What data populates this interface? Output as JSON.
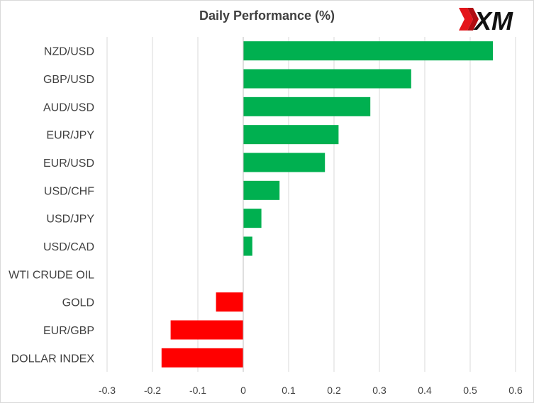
{
  "title": "Daily Performance (%)",
  "logo_text": "XM",
  "colors": {
    "positive": "#00b050",
    "negative": "#ff0000",
    "grid": "#d9d9d9",
    "text": "#404040"
  },
  "chart_data": {
    "type": "bar",
    "orientation": "horizontal",
    "title": "Daily Performance (%)",
    "categories": [
      "NZD/USD",
      "GBP/USD",
      "AUD/USD",
      "EUR/JPY",
      "EUR/USD",
      "USD/CHF",
      "USD/JPY",
      "USD/CAD",
      "WTI CRUDE OIL",
      "GOLD",
      "EUR/GBP",
      "DOLLAR INDEX"
    ],
    "values": [
      0.55,
      0.37,
      0.28,
      0.21,
      0.18,
      0.08,
      0.04,
      0.02,
      0.0,
      -0.06,
      -0.16,
      -0.18
    ],
    "xlim": [
      -0.3,
      0.6
    ],
    "xticks": [
      "-0.3",
      "-0.2",
      "-0.1",
      "0",
      "0.1",
      "0.2",
      "0.3",
      "0.4",
      "0.5",
      "0.6"
    ],
    "grid": "vertical",
    "legend": "none"
  }
}
